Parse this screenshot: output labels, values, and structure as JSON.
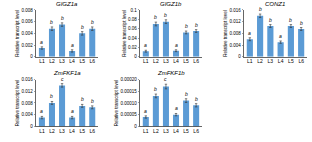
{
  "chart_data": [
    {
      "type": "bar",
      "title": "GIGZ1a",
      "y_label": "Relative transcript level",
      "categories": [
        "L1",
        "L2",
        "L3",
        "L4",
        "L5",
        "L6"
      ],
      "values": [
        0.0015,
        0.0048,
        0.0055,
        0.001,
        0.004,
        0.0048
      ],
      "errors": [
        0.0002,
        0.0003,
        0.0003,
        0.0002,
        0.0003,
        0.0003
      ],
      "annotations": [
        "a",
        "b",
        "b",
        "a",
        "b",
        "b"
      ],
      "color": "#5b9bd5",
      "ylim": [
        0,
        0.008
      ],
      "yticks": [
        0,
        0.002,
        0.004,
        0.006,
        0.008
      ]
    },
    {
      "type": "bar",
      "title": "GIGZ1b",
      "y_label": "Relative transcript level",
      "categories": [
        "L1",
        "L2",
        "L3",
        "L4",
        "L5",
        "L6"
      ],
      "values": [
        0.012,
        0.07,
        0.075,
        0.013,
        0.052,
        0.055
      ],
      "errors": [
        0.002,
        0.004,
        0.004,
        0.002,
        0.003,
        0.003
      ],
      "annotations": [
        "a",
        "b",
        "b",
        "a",
        "b",
        "b"
      ],
      "color": "#5b9bd5",
      "ylim": [
        0,
        0.1
      ],
      "yticks": [
        0,
        0.02,
        0.04,
        0.06,
        0.08,
        0.1
      ]
    },
    {
      "type": "bar",
      "title": "CONZ1",
      "y_label": "Relative transcript level",
      "categories": [
        "L1",
        "L2",
        "L3",
        "L4",
        "L5",
        "L6"
      ],
      "values": [
        0.006,
        0.014,
        0.0105,
        0.005,
        0.0105,
        0.0095
      ],
      "errors": [
        0.0005,
        0.0006,
        0.0005,
        0.0004,
        0.0005,
        0.0005
      ],
      "annotations": [
        "a",
        "b",
        "b",
        "a",
        "b",
        "b"
      ],
      "color": "#5b9bd5",
      "ylim": [
        0,
        0.016
      ],
      "yticks": [
        0,
        0.004,
        0.008,
        0.012,
        0.016
      ]
    },
    {
      "type": "bar",
      "title": "ZmFKF1a",
      "y_label": "Relative transcript level",
      "categories": [
        "L1",
        "L2",
        "L3",
        "L4",
        "L5",
        "L6"
      ],
      "values": [
        0.003,
        0.008,
        0.014,
        0.003,
        0.007,
        0.0065
      ],
      "errors": [
        0.0004,
        0.0005,
        0.0006,
        0.0004,
        0.0005,
        0.0005
      ],
      "annotations": [
        "a",
        "b",
        "c",
        "a",
        "b",
        "b"
      ],
      "color": "#5b9bd5",
      "ylim": [
        0,
        0.016
      ],
      "yticks": [
        0,
        0.004,
        0.008,
        0.012,
        0.016
      ]
    },
    {
      "type": "bar",
      "title": "ZmFKF1b",
      "y_label": "Relative transcript level",
      "categories": [
        "L1",
        "L2",
        "L3",
        "L4",
        "L5",
        "L6"
      ],
      "values": [
        4e-05,
        0.00013,
        0.00017,
        5e-05,
        0.00011,
        9e-05
      ],
      "errors": [
        5e-06,
        8e-06,
        1e-05,
        5e-06,
        8e-06,
        7e-06
      ],
      "annotations": [
        "a",
        "b",
        "c",
        "a",
        "b",
        "b"
      ],
      "color": "#5b9bd5",
      "ylim": [
        0,
        0.0002
      ],
      "yticks": [
        0,
        {
          "value": 5e-05,
          "label": "0.00005"
        },
        {
          "value": 0.0001,
          "label": "0.00010"
        },
        {
          "value": 0.00015,
          "label": "0.00015"
        },
        {
          "value": 0.0002,
          "label": "0.00020"
        }
      ]
    }
  ]
}
